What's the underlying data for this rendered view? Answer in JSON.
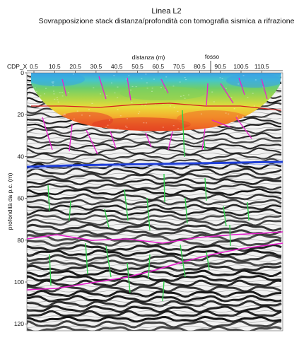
{
  "header": {
    "title": "Linea L2",
    "subtitle": "Sovrapposizione stack distanza/profondità con tomografia sismica a rifrazione"
  },
  "axes": {
    "cdp_label": "CDP_X",
    "x_title": "distanza (m)",
    "y_title": "profondità da p.c. (m)",
    "annotation": "fosso",
    "x_ticks": [
      "0.5",
      "10.5",
      "20.5",
      "30.5",
      "40.5",
      "50.5",
      "60.5",
      "70.5",
      "80.5",
      "90.5",
      "100.5",
      "110.5"
    ],
    "y_ticks": [
      "0",
      "20",
      "40",
      "60",
      "80",
      "100",
      "120"
    ]
  },
  "colors": {
    "horizon": "#e81ecf",
    "tomo_boundary": "#d4201f",
    "reflector_blue": "#1f3fd8",
    "fault_green": "#2fd04a",
    "fault_magenta": "#e81ecf"
  }
}
